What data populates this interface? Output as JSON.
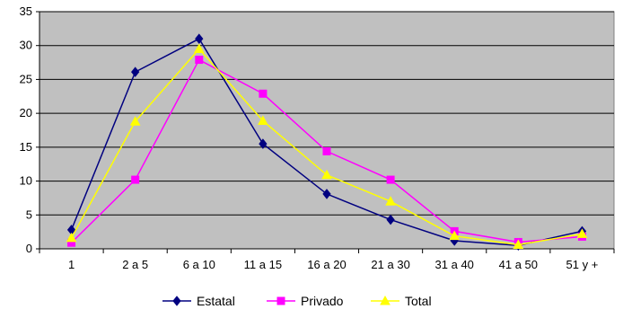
{
  "chart_data": {
    "type": "line",
    "categories": [
      "1",
      "2 a 5",
      "6 a 10",
      "11 a 15",
      "16 a 20",
      "21 a 30",
      "31 a 40",
      "41 a 50",
      "51 y +"
    ],
    "ylim": [
      0,
      35
    ],
    "yticks": [
      0,
      5,
      10,
      15,
      20,
      25,
      30,
      35
    ],
    "grid": true,
    "legend_position": "bottom",
    "plot_background": "#c0c0c0",
    "series": [
      {
        "name": "Estatal",
        "color": "#000080",
        "marker": "diamond",
        "values": [
          2.8,
          26.1,
          31.0,
          15.5,
          8.1,
          4.3,
          1.2,
          0.5,
          2.6
        ]
      },
      {
        "name": "Privado",
        "color": "#ff00ff",
        "marker": "square",
        "values": [
          0.9,
          10.2,
          27.9,
          22.9,
          14.4,
          10.2,
          2.6,
          1.0,
          1.8
        ]
      },
      {
        "name": "Total",
        "color": "#ffff00",
        "marker": "triangle",
        "values": [
          1.6,
          18.8,
          29.5,
          18.9,
          10.9,
          7.0,
          1.9,
          0.6,
          2.2
        ]
      }
    ]
  }
}
